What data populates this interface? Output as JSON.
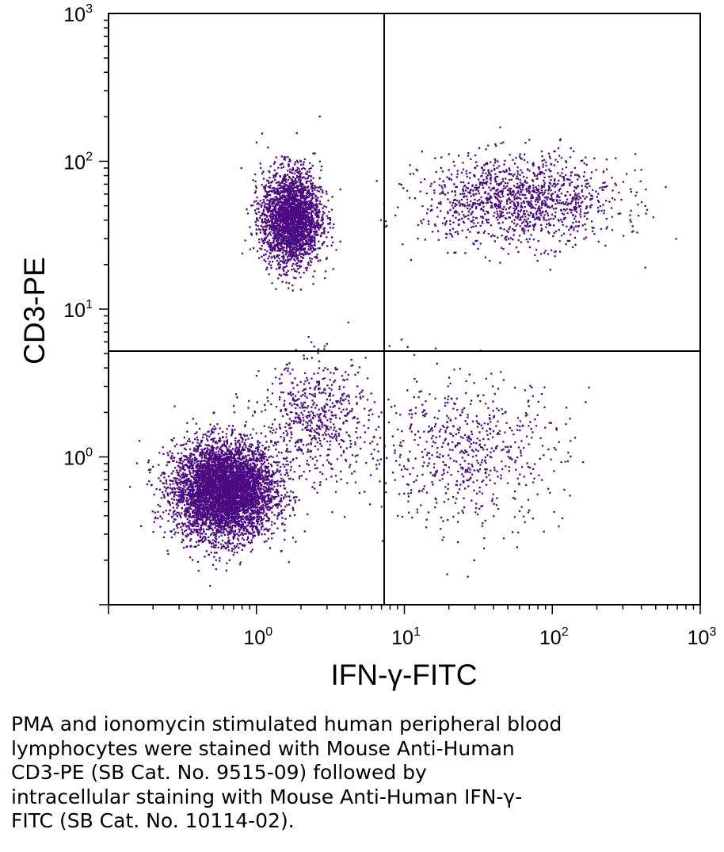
{
  "chart_data": {
    "type": "scatter",
    "title": "",
    "xlabel": "IFN-γ-FITC",
    "ylabel": "CD3-PE",
    "x_scale": "log",
    "y_scale": "log",
    "xlim": [
      0.1,
      1000
    ],
    "ylim": [
      0.1,
      1000
    ],
    "x_ticks": [
      {
        "base": "10",
        "exp": "0"
      },
      {
        "base": "10",
        "exp": "1"
      },
      {
        "base": "10",
        "exp": "2"
      },
      {
        "base": "10",
        "exp": "3"
      }
    ],
    "y_ticks": [
      {
        "base": "10",
        "exp": "0"
      },
      {
        "base": "10",
        "exp": "1"
      },
      {
        "base": "10",
        "exp": "2"
      },
      {
        "base": "10",
        "exp": "3"
      }
    ],
    "quadrant_gate": {
      "x": 7.3,
      "y": 5.2
    },
    "grid": false,
    "point_color": "#4b0a82",
    "populations": [
      {
        "center": [
          0.6,
          0.6
        ],
        "spread": [
          0.17,
          0.16
        ],
        "count": 5200
      },
      {
        "center": [
          1.7,
          42
        ],
        "spread": [
          0.1,
          0.16
        ],
        "count": 2600
      },
      {
        "center": [
          60,
          55
        ],
        "spread": [
          0.33,
          0.15
        ],
        "count": 1300
      },
      {
        "center": [
          25,
          1.1
        ],
        "spread": [
          0.34,
          0.25
        ],
        "count": 650
      },
      {
        "center": [
          2.5,
          1.8
        ],
        "spread": [
          0.18,
          0.2
        ],
        "count": 600
      }
    ]
  },
  "caption_lines": [
    "PMA and ionomycin stimulated human peripheral blood",
    "lymphocytes were stained with Mouse Anti-Human",
    "CD3-PE (SB Cat. No. 9515-09) followed by",
    "intracellular staining with Mouse Anti-Human IFN-γ-",
    "FITC (SB Cat. No. 10114-02)."
  ]
}
